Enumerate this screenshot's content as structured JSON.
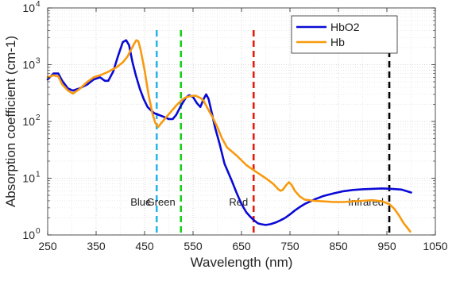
{
  "chart_data": {
    "type": "line",
    "title": "",
    "xlabel": "Wavelength (nm)",
    "ylabel": "Absorption coefficient (cm-1)",
    "xlim": [
      250,
      1050
    ],
    "ylim": [
      1,
      10000
    ],
    "y_scale": "log",
    "grid": true,
    "grid_minor": true,
    "legend_position": "top-right",
    "x_ticks": [
      250,
      350,
      450,
      550,
      650,
      750,
      850,
      950,
      1050
    ],
    "x_tick_labels": [
      "250",
      "350",
      "450",
      "550",
      "650",
      "750",
      "850",
      "950",
      "1050"
    ],
    "y_ticks": [
      1,
      10,
      100,
      1000,
      10000
    ],
    "y_tick_labels": [
      {
        "base": "10",
        "exp": "0"
      },
      {
        "base": "10",
        "exp": "1"
      },
      {
        "base": "10",
        "exp": "2"
      },
      {
        "base": "10",
        "exp": "3"
      },
      {
        "base": "10",
        "exp": "4"
      }
    ],
    "series": [
      {
        "name": "HbO2",
        "color": "#0a0ad6",
        "x": [
          250,
          262,
          272,
          280,
          292,
          302,
          315,
          332,
          345,
          358,
          368,
          375,
          385,
          395,
          405,
          412,
          418,
          425,
          432,
          440,
          448,
          456,
          462,
          470,
          480,
          490,
          500,
          508,
          515,
          525,
          535,
          542,
          550,
          558,
          565,
          572,
          577,
          582,
          588,
          595,
          605,
          615,
          630,
          640,
          650,
          660,
          668,
          676,
          684,
          690,
          700,
          710,
          720,
          730,
          740,
          750,
          760,
          770,
          780,
          800,
          820,
          840,
          860,
          880,
          900,
          920,
          940,
          960,
          980,
          1000
        ],
        "y": [
          550,
          700,
          700,
          520,
          380,
          350,
          380,
          450,
          550,
          600,
          520,
          520,
          750,
          1400,
          2500,
          2700,
          2200,
          1100,
          650,
          380,
          250,
          180,
          160,
          140,
          130,
          120,
          110,
          110,
          130,
          190,
          260,
          290,
          270,
          210,
          180,
          250,
          300,
          250,
          150,
          80,
          40,
          18,
          9,
          5.5,
          3.5,
          2.5,
          2.1,
          1.8,
          1.6,
          1.55,
          1.5,
          1.55,
          1.65,
          1.8,
          2.0,
          2.3,
          2.7,
          3.1,
          3.5,
          4.2,
          4.9,
          5.4,
          5.9,
          6.2,
          6.4,
          6.5,
          6.6,
          6.5,
          6.3,
          5.6
        ]
      },
      {
        "name": "Hb",
        "color": "#f89a0f",
        "x": [
          250,
          262,
          272,
          280,
          292,
          302,
          315,
          332,
          345,
          358,
          375,
          392,
          405,
          415,
          420,
          428,
          433,
          437,
          442,
          450,
          458,
          466,
          472,
          478,
          485,
          495,
          505,
          515,
          525,
          535,
          545,
          555,
          565,
          572,
          580,
          590,
          600,
          610,
          620,
          640,
          660,
          680,
          700,
          715,
          725,
          730,
          735,
          742,
          748,
          754,
          760,
          770,
          780,
          800,
          820,
          840,
          860,
          880,
          900,
          920,
          940,
          955,
          965,
          975,
          985,
          992,
          998
        ],
        "y": [
          600,
          650,
          620,
          450,
          350,
          310,
          370,
          500,
          600,
          650,
          750,
          900,
          1100,
          1400,
          1700,
          2300,
          2700,
          2600,
          1800,
          800,
          300,
          140,
          95,
          80,
          95,
          120,
          150,
          190,
          230,
          265,
          280,
          285,
          260,
          230,
          170,
          120,
          80,
          50,
          35,
          25,
          17,
          13,
          10,
          8,
          6.5,
          6.0,
          6.2,
          7.5,
          8.5,
          7.5,
          6.0,
          4.8,
          4.2,
          4.0,
          3.9,
          3.8,
          3.8,
          3.9,
          4.0,
          4.1,
          3.9,
          3.5,
          2.9,
          2.2,
          1.6,
          1.35,
          1.15
        ]
      }
    ],
    "markers": [
      {
        "x": 475,
        "label": "Blue",
        "color": "#29b6ea"
      },
      {
        "x": 525,
        "label": "Green",
        "color": "#19cf19"
      },
      {
        "x": 675,
        "label": "Red",
        "color": "#e81c0c"
      },
      {
        "x": 955,
        "label": "Infrared",
        "color": "#000000"
      }
    ]
  }
}
